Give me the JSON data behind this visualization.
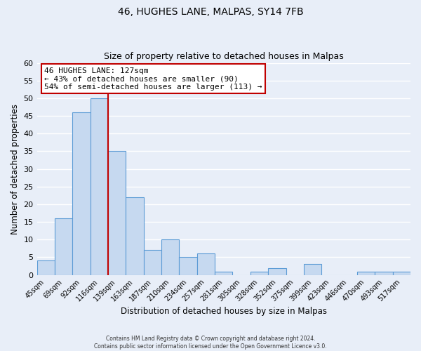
{
  "title": "46, HUGHES LANE, MALPAS, SY14 7FB",
  "subtitle": "Size of property relative to detached houses in Malpas",
  "xlabel": "Distribution of detached houses by size in Malpas",
  "ylabel": "Number of detached properties",
  "bin_labels": [
    "45sqm",
    "69sqm",
    "92sqm",
    "116sqm",
    "139sqm",
    "163sqm",
    "187sqm",
    "210sqm",
    "234sqm",
    "257sqm",
    "281sqm",
    "305sqm",
    "328sqm",
    "352sqm",
    "375sqm",
    "399sqm",
    "423sqm",
    "446sqm",
    "470sqm",
    "493sqm",
    "517sqm"
  ],
  "bar_heights": [
    4,
    16,
    46,
    50,
    35,
    22,
    7,
    10,
    5,
    6,
    1,
    0,
    1,
    2,
    0,
    3,
    0,
    0,
    1,
    1,
    1
  ],
  "bar_color": "#c6d9f0",
  "bar_edge_color": "#5b9bd5",
  "ylim": [
    0,
    60
  ],
  "yticks": [
    0,
    5,
    10,
    15,
    20,
    25,
    30,
    35,
    40,
    45,
    50,
    55,
    60
  ],
  "vline_x_index": 3,
  "vline_color": "#c00000",
  "annotation_title": "46 HUGHES LANE: 127sqm",
  "annotation_line1": "← 43% of detached houses are smaller (90)",
  "annotation_line2": "54% of semi-detached houses are larger (113) →",
  "annotation_box_color": "#ffffff",
  "annotation_box_edge": "#c00000",
  "footer1": "Contains HM Land Registry data © Crown copyright and database right 2024.",
  "footer2": "Contains public sector information licensed under the Open Government Licence v3.0.",
  "background_color": "#e8eef8",
  "grid_color": "#ffffff"
}
